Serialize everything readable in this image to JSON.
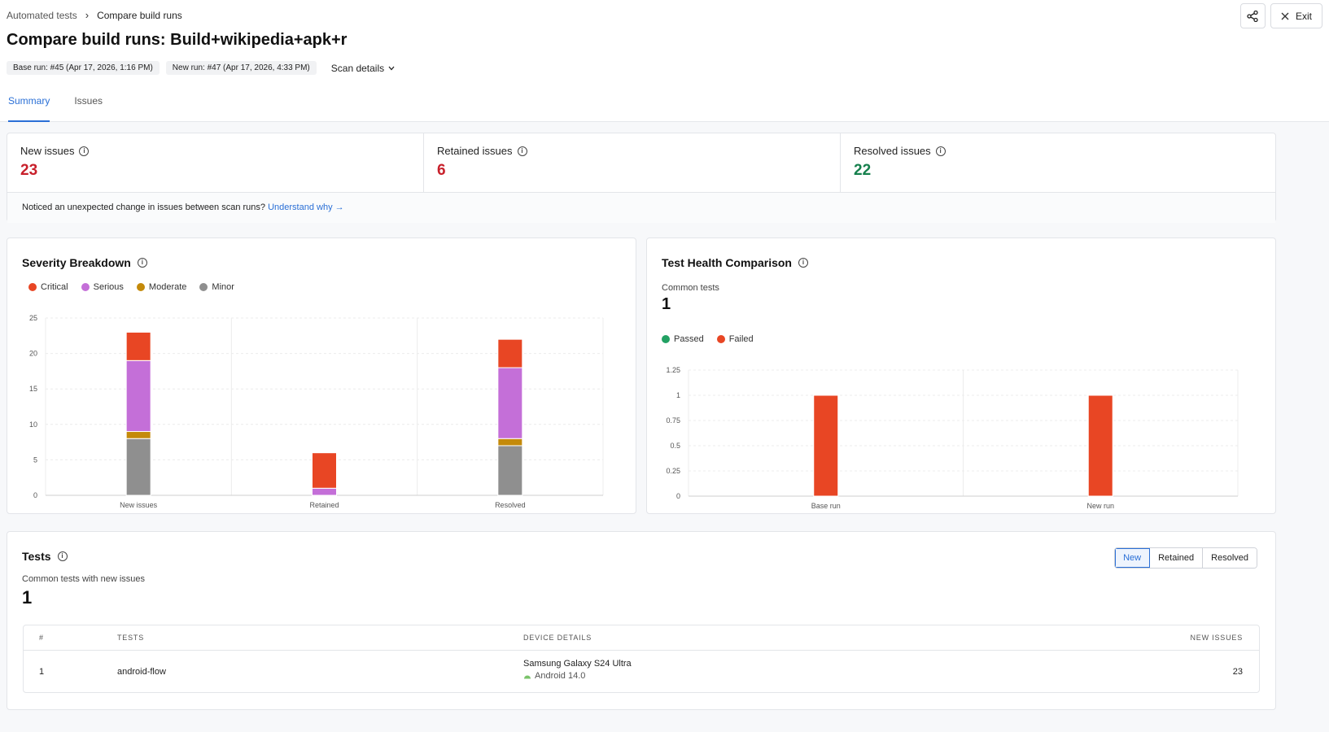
{
  "breadcrumb": {
    "parent": "Automated tests",
    "current": "Compare build runs"
  },
  "header": {
    "title": "Compare build runs: Build+wikipedia+apk+r",
    "base_run": "Base run: #45 (Apr 17, 2026, 1:16 PM)",
    "new_run": "New run: #47 (Apr 17, 2026, 4:33 PM)",
    "scan_details": "Scan details",
    "exit_label": "Exit"
  },
  "tabs": [
    {
      "label": "Summary",
      "active": true
    },
    {
      "label": "Issues",
      "active": false
    }
  ],
  "stats": {
    "new_label": "New issues",
    "new_value": "23",
    "retained_label": "Retained issues",
    "retained_value": "6",
    "resolved_label": "Resolved issues",
    "resolved_value": "22"
  },
  "notice": {
    "text": "Noticed an unexpected change in issues between scan runs?",
    "link": "Understand why →"
  },
  "severity": {
    "title": "Severity Breakdown",
    "legend": [
      {
        "name": "Critical",
        "color": "#e84624"
      },
      {
        "name": "Serious",
        "color": "#c46fd8"
      },
      {
        "name": "Moderate",
        "color": "#c48a0a"
      },
      {
        "name": "Minor",
        "color": "#8f8f8f"
      }
    ]
  },
  "health": {
    "title": "Test Health Comparison",
    "common_label": "Common tests",
    "common_value": "1",
    "legend": [
      {
        "name": "Passed",
        "color": "#22a163"
      },
      {
        "name": "Failed",
        "color": "#e84624"
      }
    ]
  },
  "chart_data": [
    {
      "type": "bar",
      "stacked": true,
      "categories": [
        "New issues",
        "Retained",
        "Resolved"
      ],
      "series": [
        {
          "name": "Minor",
          "color": "#8f8f8f",
          "values": [
            8,
            0,
            7
          ]
        },
        {
          "name": "Moderate",
          "color": "#c48a0a",
          "values": [
            1,
            0,
            1
          ]
        },
        {
          "name": "Serious",
          "color": "#c46fd8",
          "values": [
            10,
            1,
            10
          ]
        },
        {
          "name": "Critical",
          "color": "#e84624",
          "values": [
            4,
            5,
            4
          ]
        }
      ],
      "yticks": [
        "0",
        "5",
        "10",
        "15",
        "20",
        "25"
      ],
      "ylim": [
        0,
        25
      ],
      "grid": true,
      "legend": "top-left"
    },
    {
      "type": "bar",
      "stacked": true,
      "categories": [
        "Base run",
        "New run"
      ],
      "series": [
        {
          "name": "Passed",
          "color": "#22a163",
          "values": [
            0,
            0
          ]
        },
        {
          "name": "Failed",
          "color": "#e84624",
          "values": [
            1,
            1
          ]
        }
      ],
      "yticks": [
        "0",
        "0.25",
        "0.5",
        "0.75",
        "1",
        "1.25"
      ],
      "ylim": [
        0,
        1.25
      ],
      "grid": true,
      "legend": "top-left"
    }
  ],
  "tests": {
    "title": "Tests",
    "subtitle": "Common tests with new issues",
    "count": "1",
    "filters": [
      {
        "label": "New",
        "active": true
      },
      {
        "label": "Retained",
        "active": false
      },
      {
        "label": "Resolved",
        "active": false
      }
    ],
    "columns": {
      "num": "#",
      "tests": "TESTS",
      "device": "DEVICE DETAILS",
      "new_issues": "NEW ISSUES"
    },
    "rows": [
      {
        "num": "1",
        "test": "android-flow",
        "device": "Samsung Galaxy S24 Ultra",
        "os": "Android 14.0",
        "new_issues": "23"
      }
    ]
  }
}
